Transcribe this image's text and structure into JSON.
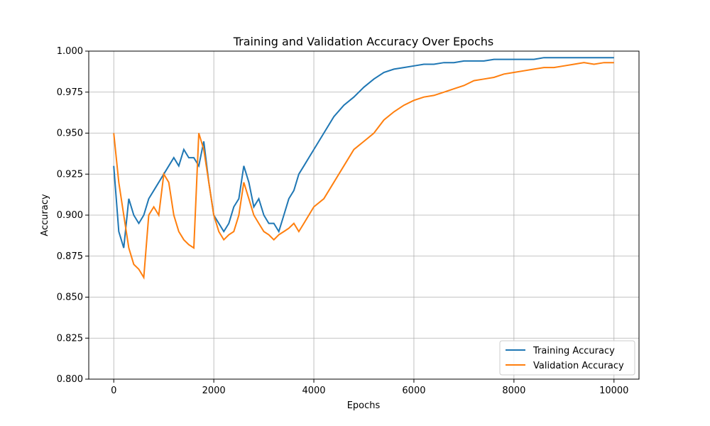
{
  "chart_data": {
    "type": "line",
    "title": "Training and Validation Accuracy Over Epochs",
    "xlabel": "Epochs",
    "ylabel": "Accuracy",
    "xlim": [
      -500,
      10500
    ],
    "ylim": [
      0.8,
      1.0
    ],
    "xticks": [
      0,
      2000,
      4000,
      6000,
      8000,
      10000
    ],
    "yticks": [
      0.8,
      0.825,
      0.85,
      0.875,
      0.9,
      0.925,
      0.95,
      0.975,
      1.0
    ],
    "xtick_labels": [
      "0",
      "2000",
      "4000",
      "6000",
      "8000",
      "10000"
    ],
    "ytick_labels": [
      "0.800",
      "0.825",
      "0.850",
      "0.875",
      "0.900",
      "0.925",
      "0.950",
      "0.975",
      "1.000"
    ],
    "grid": true,
    "legend_position": "lower-right",
    "series": [
      {
        "name": "Training Accuracy",
        "color": "#1f77b4",
        "x": [
          0,
          100,
          200,
          300,
          400,
          500,
          600,
          700,
          800,
          900,
          1000,
          1100,
          1200,
          1300,
          1400,
          1500,
          1600,
          1700,
          1800,
          1900,
          2000,
          2100,
          2200,
          2300,
          2400,
          2500,
          2600,
          2700,
          2800,
          2900,
          3000,
          3100,
          3200,
          3300,
          3400,
          3500,
          3600,
          3700,
          3800,
          3900,
          4000,
          4200,
          4400,
          4600,
          4800,
          5000,
          5200,
          5400,
          5600,
          5800,
          6000,
          6200,
          6400,
          6600,
          6800,
          7000,
          7200,
          7400,
          7600,
          7800,
          8000,
          8200,
          8400,
          8600,
          8800,
          9000,
          9200,
          9400,
          9600,
          9800,
          10000
        ],
        "y": [
          0.93,
          0.89,
          0.88,
          0.91,
          0.9,
          0.895,
          0.9,
          0.91,
          0.915,
          0.92,
          0.925,
          0.93,
          0.935,
          0.93,
          0.94,
          0.935,
          0.935,
          0.93,
          0.945,
          0.92,
          0.9,
          0.895,
          0.89,
          0.895,
          0.905,
          0.91,
          0.93,
          0.92,
          0.905,
          0.91,
          0.9,
          0.895,
          0.895,
          0.89,
          0.9,
          0.91,
          0.915,
          0.925,
          0.93,
          0.935,
          0.94,
          0.95,
          0.96,
          0.967,
          0.972,
          0.978,
          0.983,
          0.987,
          0.989,
          0.99,
          0.991,
          0.992,
          0.992,
          0.993,
          0.993,
          0.994,
          0.994,
          0.994,
          0.995,
          0.995,
          0.995,
          0.995,
          0.995,
          0.996,
          0.996,
          0.996,
          0.996,
          0.996,
          0.996,
          0.996,
          0.996
        ]
      },
      {
        "name": "Validation Accuracy",
        "color": "#ff7f0e",
        "x": [
          0,
          100,
          200,
          300,
          400,
          500,
          600,
          700,
          800,
          900,
          1000,
          1100,
          1200,
          1300,
          1400,
          1500,
          1600,
          1700,
          1800,
          1900,
          2000,
          2100,
          2200,
          2300,
          2400,
          2500,
          2600,
          2700,
          2800,
          2900,
          3000,
          3100,
          3200,
          3300,
          3400,
          3500,
          3600,
          3700,
          3800,
          3900,
          4000,
          4200,
          4400,
          4600,
          4800,
          5000,
          5200,
          5400,
          5600,
          5800,
          6000,
          6200,
          6400,
          6600,
          6800,
          7000,
          7200,
          7400,
          7600,
          7800,
          8000,
          8200,
          8400,
          8600,
          8800,
          9000,
          9200,
          9400,
          9600,
          9800,
          10000
        ],
        "y": [
          0.95,
          0.92,
          0.9,
          0.88,
          0.87,
          0.867,
          0.862,
          0.9,
          0.905,
          0.9,
          0.925,
          0.92,
          0.9,
          0.89,
          0.885,
          0.882,
          0.88,
          0.95,
          0.94,
          0.92,
          0.9,
          0.89,
          0.885,
          0.888,
          0.89,
          0.9,
          0.92,
          0.91,
          0.9,
          0.895,
          0.89,
          0.888,
          0.885,
          0.888,
          0.89,
          0.892,
          0.895,
          0.89,
          0.895,
          0.9,
          0.905,
          0.91,
          0.92,
          0.93,
          0.94,
          0.945,
          0.95,
          0.958,
          0.963,
          0.967,
          0.97,
          0.972,
          0.973,
          0.975,
          0.977,
          0.979,
          0.982,
          0.983,
          0.984,
          0.986,
          0.987,
          0.988,
          0.989,
          0.99,
          0.99,
          0.991,
          0.992,
          0.993,
          0.992,
          0.993,
          0.993
        ]
      }
    ]
  }
}
